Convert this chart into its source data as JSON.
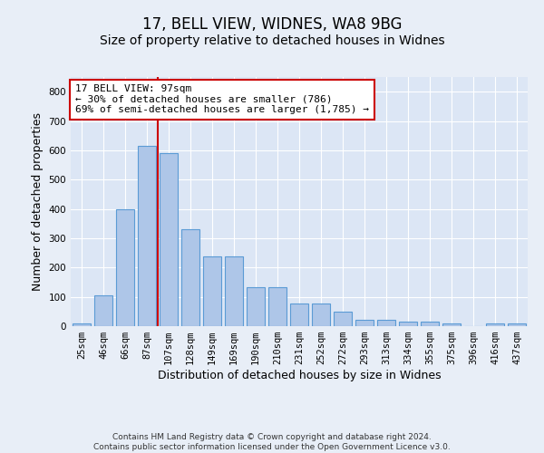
{
  "title1": "17, BELL VIEW, WIDNES, WA8 9BG",
  "title2": "Size of property relative to detached houses in Widnes",
  "xlabel": "Distribution of detached houses by size in Widnes",
  "ylabel": "Number of detached properties",
  "footer1": "Contains HM Land Registry data © Crown copyright and database right 2024.",
  "footer2": "Contains public sector information licensed under the Open Government Licence v3.0.",
  "categories": [
    "25sqm",
    "46sqm",
    "66sqm",
    "87sqm",
    "107sqm",
    "128sqm",
    "149sqm",
    "169sqm",
    "190sqm",
    "210sqm",
    "231sqm",
    "252sqm",
    "272sqm",
    "293sqm",
    "313sqm",
    "334sqm",
    "355sqm",
    "375sqm",
    "396sqm",
    "416sqm",
    "437sqm"
  ],
  "values": [
    8,
    105,
    400,
    615,
    590,
    330,
    238,
    238,
    133,
    133,
    77,
    77,
    50,
    22,
    22,
    15,
    15,
    8,
    0,
    8,
    8
  ],
  "bar_color": "#aec6e8",
  "bar_edge_color": "#5b9bd5",
  "bar_width": 0.8,
  "red_line_x": 3.5,
  "annotation_text": "17 BELL VIEW: 97sqm\n← 30% of detached houses are smaller (786)\n69% of semi-detached houses are larger (1,785) →",
  "annotation_box_color": "#ffffff",
  "annotation_box_edge": "#cc0000",
  "red_line_color": "#cc0000",
  "ylim": [
    0,
    850
  ],
  "yticks": [
    0,
    100,
    200,
    300,
    400,
    500,
    600,
    700,
    800
  ],
  "background_color": "#e8eef7",
  "plot_background": "#dce6f5",
  "grid_color": "#ffffff",
  "title1_fontsize": 12,
  "title2_fontsize": 10,
  "xlabel_fontsize": 9,
  "ylabel_fontsize": 9,
  "tick_fontsize": 7.5,
  "annotation_fontsize": 8
}
